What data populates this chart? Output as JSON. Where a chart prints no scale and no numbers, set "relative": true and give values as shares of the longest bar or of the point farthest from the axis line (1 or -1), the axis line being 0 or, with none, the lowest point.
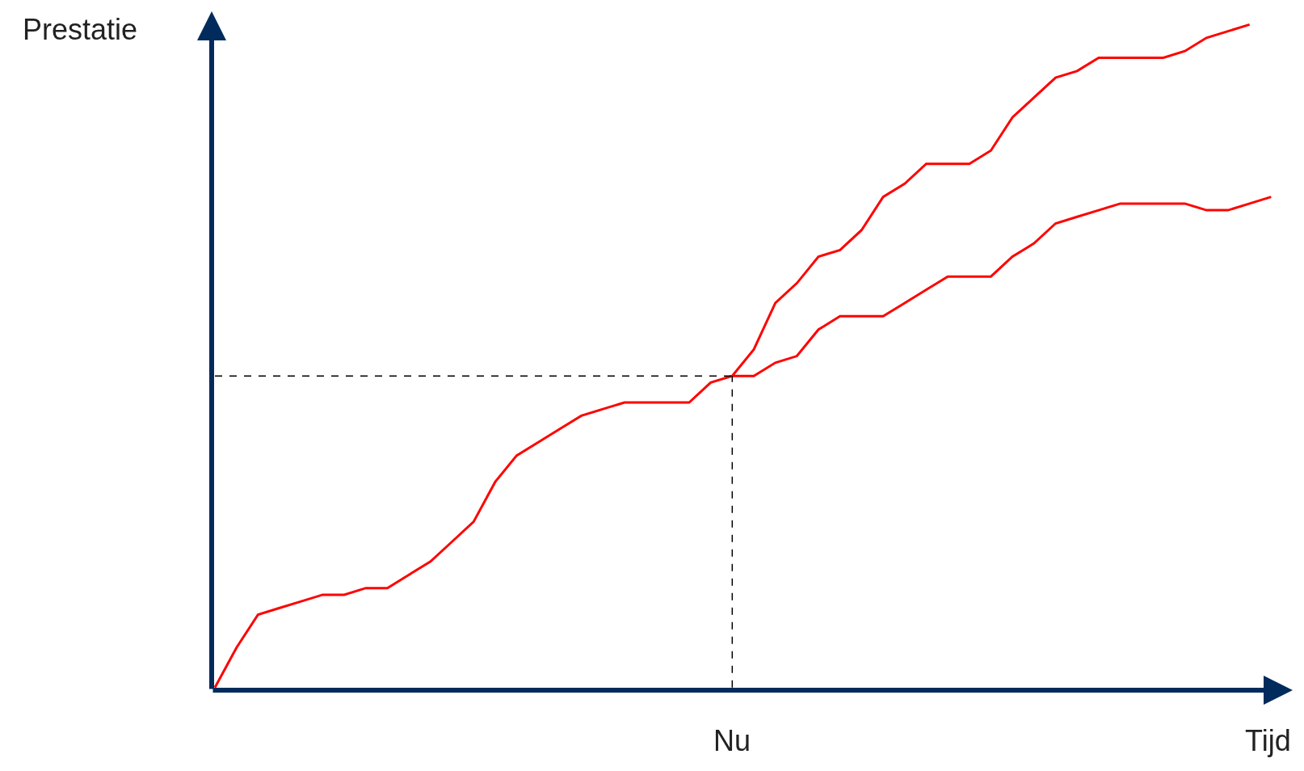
{
  "chart_data": {
    "type": "line",
    "relative": true,
    "xlabel": "Tijd",
    "ylabel": "Prestatie",
    "annotations": [
      "Nu"
    ],
    "marker": "none",
    "line_style": "solid",
    "categories": [
      null,
      null,
      null,
      null,
      null,
      null,
      null,
      null,
      null,
      null,
      null,
      null,
      null,
      null,
      null,
      null,
      null,
      null,
      null,
      null,
      null,
      null,
      null,
      null,
      null,
      null,
      null,
      null,
      null,
      null,
      null,
      null,
      null,
      null,
      null,
      null,
      null,
      null,
      null,
      null,
      null,
      null,
      null,
      null,
      null,
      null,
      null,
      null,
      null,
      null
    ],
    "series": [
      {
        "color": "#ff0000",
        "values": [
          0.0,
          0.06,
          0.11,
          0.12,
          0.13,
          0.14,
          0.14,
          0.15,
          0.15,
          0.17,
          0.19,
          0.22,
          0.25,
          0.31,
          0.35,
          0.37,
          0.39,
          0.41,
          0.42,
          0.43,
          0.43,
          0.43,
          0.43,
          0.46,
          0.47,
          0.51,
          0.58,
          0.61,
          0.65,
          0.66,
          0.69,
          0.74,
          0.76,
          0.79,
          0.79,
          0.79,
          0.81,
          0.86,
          0.89,
          0.92,
          0.93,
          0.95,
          0.95,
          0.95,
          0.95,
          0.96,
          0.98,
          0.99,
          1.0,
          null
        ]
      },
      {
        "color": "#ff0000",
        "values": [
          null,
          null,
          null,
          null,
          null,
          null,
          null,
          null,
          null,
          null,
          null,
          null,
          null,
          null,
          null,
          null,
          null,
          null,
          null,
          null,
          null,
          null,
          null,
          null,
          0.47,
          0.47,
          0.49,
          0.5,
          0.54,
          0.56,
          0.56,
          0.56,
          0.58,
          0.6,
          0.62,
          0.62,
          0.62,
          0.65,
          0.67,
          0.7,
          0.71,
          0.72,
          0.73,
          0.73,
          0.73,
          0.73,
          0.72,
          0.72,
          0.73,
          0.74
        ]
      }
    ],
    "ref_lines": [
      {
        "axis": "y",
        "value": 0.47,
        "color": "#000000",
        "line_style": "dashed"
      }
    ]
  }
}
